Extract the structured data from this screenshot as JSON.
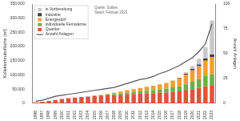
{
  "chart_data": {
    "type": "bar",
    "stacked": true,
    "categories": [
      "1996",
      "1997",
      "1998",
      "1999",
      "2000",
      "2001",
      "2002",
      "2003",
      "2004",
      "2005",
      "2006",
      "2007",
      "2008",
      "2009",
      "2010",
      "2011",
      "2012",
      "2013",
      "2014",
      "2015",
      "2016",
      "2017",
      "2018",
      "2019",
      "2020",
      "2021",
      "2022",
      "2023"
    ],
    "series": [
      {
        "name": "Quartier",
        "color": "#e0533d",
        "values": [
          3000,
          5000,
          8000,
          12000,
          15000,
          18000,
          20000,
          22000,
          24000,
          26000,
          27000,
          28000,
          29000,
          30000,
          32000,
          33000,
          34000,
          35000,
          36000,
          37000,
          38000,
          40000,
          42000,
          45000,
          50000,
          55000,
          60000,
          62000
        ]
      },
      {
        "name": "individuelle Fernwärme",
        "color": "#70ad47",
        "values": [
          0,
          0,
          0,
          0,
          0,
          0,
          0,
          0,
          0,
          1000,
          2000,
          3000,
          4000,
          5000,
          6000,
          7000,
          8000,
          9000,
          10000,
          12000,
          14000,
          16000,
          18000,
          22000,
          26000,
          30000,
          36000,
          40000
        ]
      },
      {
        "name": "Energiedorf",
        "color": "#f0a030",
        "values": [
          0,
          0,
          0,
          0,
          0,
          0,
          0,
          0,
          0,
          0,
          0,
          2000,
          4000,
          6000,
          8000,
          10000,
          12000,
          14000,
          16000,
          18000,
          20000,
          24000,
          28000,
          34000,
          40000,
          46000,
          54000,
          60000
        ]
      },
      {
        "name": "Industrie",
        "color": "#404040",
        "values": [
          0,
          0,
          0,
          0,
          0,
          0,
          0,
          0,
          0,
          0,
          0,
          0,
          0,
          0,
          0,
          0,
          0,
          0,
          0,
          0,
          0,
          0,
          2000,
          3000,
          5000,
          6000,
          8000,
          10000
        ]
      },
      {
        "name": "in Vorbereitung",
        "color": "#c8c8c8",
        "values": [
          0,
          0,
          0,
          0,
          0,
          0,
          0,
          0,
          0,
          0,
          0,
          0,
          0,
          0,
          0,
          0,
          0,
          0,
          0,
          0,
          0,
          0,
          0,
          5000,
          10000,
          20000,
          40000,
          120000
        ]
      },
      {
        "name": "Anzahl Anlagen",
        "type": "line",
        "axis": "y2",
        "color": "#555555",
        "line_style": "solid",
        "values": [
          2,
          3,
          5,
          7,
          8,
          9,
          10,
          11,
          12,
          13,
          14,
          15,
          16,
          18,
          20,
          22,
          24,
          25,
          27,
          30,
          32,
          35,
          38,
          42,
          46,
          52,
          60,
          80
        ]
      }
    ],
    "ylabel": "Kollektorbruttofläche [m²]",
    "y2label": "Anzahl Anlagen",
    "ylim": [
      0,
      350000
    ],
    "yticks": [
      0,
      {
        "value": 50000,
        "label": "50.000"
      },
      {
        "value": 100000,
        "label": "100.000"
      },
      {
        "value": 150000,
        "label": "150.000"
      },
      {
        "value": 200000,
        "label": "200.000"
      },
      {
        "value": 250000,
        "label": "250.000"
      },
      {
        "value": 300000,
        "label": "300.000"
      },
      {
        "value": 350000,
        "label": "350.000"
      }
    ],
    "y2lim": [
      0,
      100
    ],
    "y2ticks": [
      0,
      25,
      50,
      75,
      100
    ],
    "legend": "upper left",
    "grid": false,
    "annotations": [
      "Quelle: Solites",
      "Stand: Februar 2023"
    ]
  }
}
